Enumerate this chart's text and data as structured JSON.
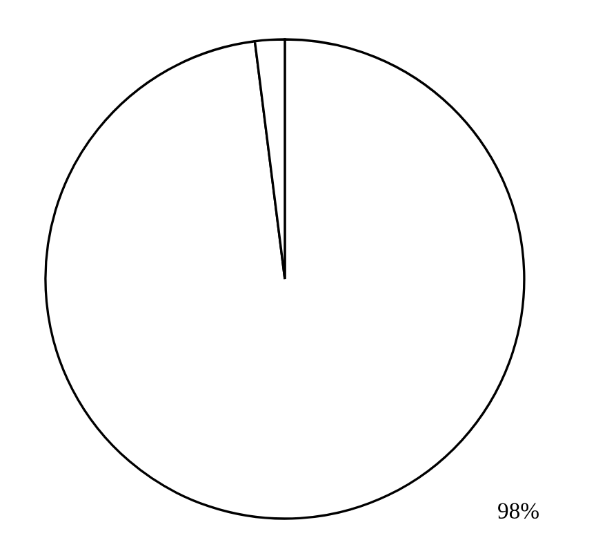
{
  "chart_data": {
    "type": "pie",
    "categories": [
      null,
      null
    ],
    "values": [
      98,
      2
    ],
    "colors": [
      "#ffffff",
      "#ffffff"
    ],
    "value_labels": [
      "98%",
      null
    ]
  }
}
